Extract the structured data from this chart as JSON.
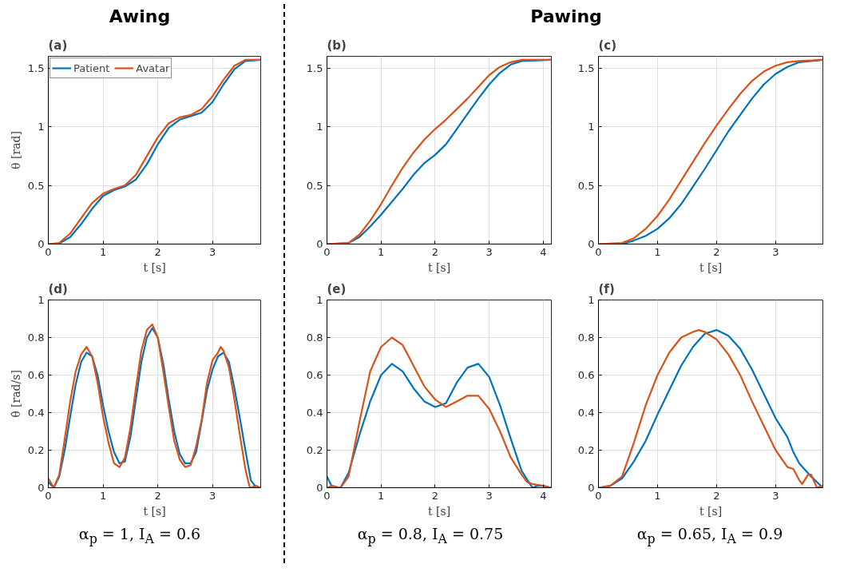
{
  "chart_data": [
    {
      "type": "line",
      "title": "(a)",
      "annotations": [
        "Awing"
      ],
      "xlabel": "t [s]",
      "ylabel": "θ [rad]",
      "xlim": [
        0,
        3.88
      ],
      "ylim": [
        0,
        1.6
      ],
      "xticks": [
        0,
        1,
        2,
        3
      ],
      "yticks": [
        0,
        0.5,
        1,
        1.5
      ],
      "grid": true,
      "legend": "top left",
      "series": [
        {
          "name": "Patient",
          "color": "#0072bd",
          "x": [
            0,
            0.2,
            0.4,
            0.6,
            0.8,
            1.0,
            1.2,
            1.4,
            1.6,
            1.8,
            2.0,
            2.2,
            2.4,
            2.6,
            2.8,
            3.0,
            3.2,
            3.4,
            3.6,
            3.88
          ],
          "values": [
            0,
            0.005,
            0.06,
            0.17,
            0.3,
            0.41,
            0.46,
            0.49,
            0.55,
            0.68,
            0.85,
            0.99,
            1.06,
            1.09,
            1.12,
            1.21,
            1.36,
            1.49,
            1.56,
            1.57
          ]
        },
        {
          "name": "Avatar",
          "color": "#d95319",
          "x": [
            0,
            0.2,
            0.4,
            0.6,
            0.8,
            1.0,
            1.2,
            1.4,
            1.6,
            1.8,
            2.0,
            2.2,
            2.4,
            2.6,
            2.8,
            3.0,
            3.2,
            3.4,
            3.6,
            3.88
          ],
          "values": [
            0,
            0.01,
            0.09,
            0.22,
            0.35,
            0.43,
            0.47,
            0.5,
            0.59,
            0.75,
            0.91,
            1.03,
            1.08,
            1.1,
            1.15,
            1.26,
            1.4,
            1.52,
            1.57,
            1.57
          ]
        }
      ]
    },
    {
      "type": "line",
      "title": "(b)",
      "annotations": [
        "Pawing"
      ],
      "xlabel": "t [s]",
      "xlim": [
        0,
        4.15
      ],
      "ylim": [
        0,
        1.6
      ],
      "xticks": [
        0,
        1,
        2,
        3,
        4
      ],
      "yticks": [
        0,
        0.5,
        1,
        1.5
      ],
      "grid": true,
      "series": [
        {
          "color": "#0072bd",
          "x": [
            0,
            0.4,
            0.6,
            0.8,
            1.0,
            1.2,
            1.4,
            1.6,
            1.8,
            2.0,
            2.2,
            2.4,
            2.6,
            2.8,
            3.0,
            3.2,
            3.4,
            3.6,
            4.15
          ],
          "values": [
            0,
            0.01,
            0.06,
            0.15,
            0.25,
            0.36,
            0.47,
            0.59,
            0.69,
            0.76,
            0.85,
            0.98,
            1.11,
            1.24,
            1.36,
            1.46,
            1.53,
            1.56,
            1.57
          ]
        },
        {
          "color": "#d95319",
          "x": [
            0,
            0.4,
            0.6,
            0.8,
            1.0,
            1.2,
            1.4,
            1.6,
            1.8,
            2.0,
            2.2,
            2.4,
            2.6,
            2.8,
            3.0,
            3.2,
            3.4,
            3.6,
            4.15
          ],
          "values": [
            0,
            0.01,
            0.08,
            0.2,
            0.34,
            0.5,
            0.65,
            0.78,
            0.89,
            0.98,
            1.06,
            1.15,
            1.24,
            1.34,
            1.44,
            1.51,
            1.55,
            1.57,
            1.57
          ]
        }
      ]
    },
    {
      "type": "line",
      "title": "(c)",
      "xlabel": "t [s]",
      "xlim": [
        0,
        3.8
      ],
      "ylim": [
        0,
        1.6
      ],
      "xticks": [
        0,
        1,
        2,
        3
      ],
      "yticks": [
        0,
        0.5,
        1,
        1.5
      ],
      "grid": true,
      "series": [
        {
          "color": "#0072bd",
          "x": [
            0,
            0.4,
            0.6,
            0.8,
            1.0,
            1.2,
            1.4,
            1.6,
            1.8,
            2.0,
            2.2,
            2.4,
            2.6,
            2.8,
            3.0,
            3.2,
            3.4,
            3.6,
            3.8
          ],
          "values": [
            0,
            0,
            0.03,
            0.07,
            0.13,
            0.22,
            0.34,
            0.49,
            0.64,
            0.8,
            0.96,
            1.1,
            1.24,
            1.36,
            1.45,
            1.51,
            1.55,
            1.56,
            1.57
          ]
        },
        {
          "color": "#d95319",
          "x": [
            0,
            0.4,
            0.6,
            0.8,
            1.0,
            1.2,
            1.4,
            1.6,
            1.8,
            2.0,
            2.2,
            2.4,
            2.6,
            2.8,
            3.0,
            3.2,
            3.4,
            3.8
          ],
          "values": [
            0,
            0.01,
            0.05,
            0.13,
            0.24,
            0.38,
            0.54,
            0.7,
            0.86,
            1.01,
            1.15,
            1.28,
            1.39,
            1.47,
            1.52,
            1.55,
            1.56,
            1.57
          ]
        }
      ]
    },
    {
      "type": "line",
      "title": "(d)",
      "annotations": [
        "α$_{p}$ = 1, I$_{A}$ = 0.6"
      ],
      "xlabel": "t [s]",
      "ylabel": "θ̇ [rad/s]",
      "xlim": [
        0,
        3.88
      ],
      "ylim": [
        0,
        1
      ],
      "xticks": [
        0,
        1,
        2,
        3
      ],
      "yticks": [
        0,
        0.2,
        0.4,
        0.6,
        0.8,
        1
      ],
      "grid": true,
      "series": [
        {
          "color": "#0072bd",
          "x": [
            0,
            0.1,
            0.2,
            0.3,
            0.4,
            0.5,
            0.6,
            0.7,
            0.8,
            0.9,
            1.0,
            1.1,
            1.2,
            1.3,
            1.4,
            1.5,
            1.6,
            1.7,
            1.8,
            1.9,
            2.0,
            2.1,
            2.2,
            2.3,
            2.4,
            2.5,
            2.6,
            2.7,
            2.8,
            2.9,
            3.0,
            3.1,
            3.2,
            3.3,
            3.4,
            3.5,
            3.6,
            3.7,
            3.8,
            3.88
          ],
          "values": [
            0.03,
            0,
            0.06,
            0.2,
            0.38,
            0.55,
            0.67,
            0.72,
            0.7,
            0.6,
            0.44,
            0.3,
            0.19,
            0.13,
            0.14,
            0.27,
            0.47,
            0.67,
            0.8,
            0.85,
            0.8,
            0.66,
            0.47,
            0.3,
            0.18,
            0.13,
            0.13,
            0.19,
            0.35,
            0.52,
            0.63,
            0.7,
            0.72,
            0.67,
            0.53,
            0.37,
            0.2,
            0.04,
            0,
            0
          ]
        },
        {
          "color": "#d95319",
          "x": [
            0,
            0.1,
            0.2,
            0.3,
            0.4,
            0.5,
            0.6,
            0.7,
            0.8,
            0.9,
            1.0,
            1.1,
            1.2,
            1.3,
            1.4,
            1.5,
            1.6,
            1.7,
            1.8,
            1.9,
            2.0,
            2.1,
            2.2,
            2.3,
            2.4,
            2.5,
            2.6,
            2.7,
            2.8,
            2.9,
            3.0,
            3.1,
            3.15,
            3.2,
            3.3,
            3.4,
            3.5,
            3.6,
            3.68,
            3.8,
            3.88
          ],
          "values": [
            0.05,
            0,
            0.07,
            0.26,
            0.46,
            0.62,
            0.71,
            0.75,
            0.7,
            0.56,
            0.38,
            0.24,
            0.13,
            0.11,
            0.16,
            0.32,
            0.53,
            0.73,
            0.84,
            0.87,
            0.8,
            0.62,
            0.43,
            0.25,
            0.15,
            0.11,
            0.12,
            0.22,
            0.36,
            0.56,
            0.68,
            0.72,
            0.75,
            0.73,
            0.64,
            0.47,
            0.28,
            0.1,
            0,
            0.01,
            0
          ]
        }
      ]
    },
    {
      "type": "line",
      "title": "(e)",
      "annotations": [
        "α$_{p}$ = 0.8, I$_{A}$ = 0.75"
      ],
      "xlabel": "t [s]",
      "xlim": [
        0,
        4.15
      ],
      "ylim": [
        0,
        1
      ],
      "xticks": [
        0,
        1,
        2,
        3,
        4
      ],
      "yticks": [
        0,
        0.2,
        0.4,
        0.6,
        0.8,
        1
      ],
      "grid": true,
      "series": [
        {
          "color": "#0072bd",
          "x": [
            0,
            0.1,
            0.25,
            0.4,
            0.6,
            0.8,
            1.0,
            1.2,
            1.4,
            1.6,
            1.8,
            2.0,
            2.2,
            2.4,
            2.6,
            2.8,
            3.0,
            3.2,
            3.4,
            3.6,
            3.8,
            3.9,
            4.0,
            4.15
          ],
          "values": [
            0.06,
            0,
            0,
            0.08,
            0.28,
            0.46,
            0.6,
            0.66,
            0.62,
            0.53,
            0.46,
            0.43,
            0.45,
            0.56,
            0.64,
            0.66,
            0.59,
            0.44,
            0.26,
            0.09,
            0,
            0.01,
            0.01,
            0
          ]
        },
        {
          "color": "#d95319",
          "x": [
            0,
            0.1,
            0.25,
            0.4,
            0.6,
            0.8,
            1.0,
            1.2,
            1.4,
            1.6,
            1.8,
            2.0,
            2.2,
            2.4,
            2.6,
            2.8,
            3.0,
            3.2,
            3.4,
            3.6,
            3.7,
            3.8,
            4.0,
            4.15
          ],
          "values": [
            0,
            0.01,
            0,
            0.06,
            0.35,
            0.62,
            0.75,
            0.8,
            0.76,
            0.65,
            0.54,
            0.47,
            0.43,
            0.46,
            0.49,
            0.49,
            0.42,
            0.3,
            0.16,
            0.07,
            0.03,
            0.02,
            0.01,
            0
          ]
        }
      ]
    },
    {
      "type": "line",
      "title": "(f)",
      "annotations": [
        "α$_{p}$ = 0.65, I$_{A}$ = 0.9"
      ],
      "xlabel": "t [s]",
      "xlim": [
        0,
        3.8
      ],
      "ylim": [
        0,
        1
      ],
      "xticks": [
        0,
        1,
        2,
        3
      ],
      "yticks": [
        0,
        0.2,
        0.4,
        0.6,
        0.8,
        1
      ],
      "grid": true,
      "series": [
        {
          "color": "#0072bd",
          "x": [
            0,
            0.2,
            0.4,
            0.6,
            0.8,
            1.0,
            1.2,
            1.4,
            1.6,
            1.8,
            2.0,
            2.2,
            2.4,
            2.6,
            2.8,
            3.0,
            3.2,
            3.3,
            3.4,
            3.6,
            3.8
          ],
          "values": [
            0,
            0.01,
            0.05,
            0.14,
            0.25,
            0.39,
            0.52,
            0.65,
            0.75,
            0.82,
            0.84,
            0.81,
            0.74,
            0.63,
            0.5,
            0.37,
            0.27,
            0.19,
            0.13,
            0.06,
            0
          ]
        },
        {
          "color": "#d95319",
          "x": [
            0,
            0.2,
            0.4,
            0.6,
            0.8,
            1.0,
            1.2,
            1.4,
            1.6,
            1.7,
            1.8,
            2.0,
            2.2,
            2.4,
            2.6,
            2.8,
            3.0,
            3.2,
            3.3,
            3.4,
            3.45,
            3.55,
            3.6,
            3.7,
            3.8
          ],
          "values": [
            0,
            0.01,
            0.06,
            0.24,
            0.44,
            0.6,
            0.72,
            0.8,
            0.83,
            0.84,
            0.83,
            0.79,
            0.71,
            0.6,
            0.46,
            0.33,
            0.2,
            0.11,
            0.1,
            0.04,
            0.02,
            0.07,
            0.07,
            0,
            0.01
          ]
        }
      ]
    }
  ]
}
